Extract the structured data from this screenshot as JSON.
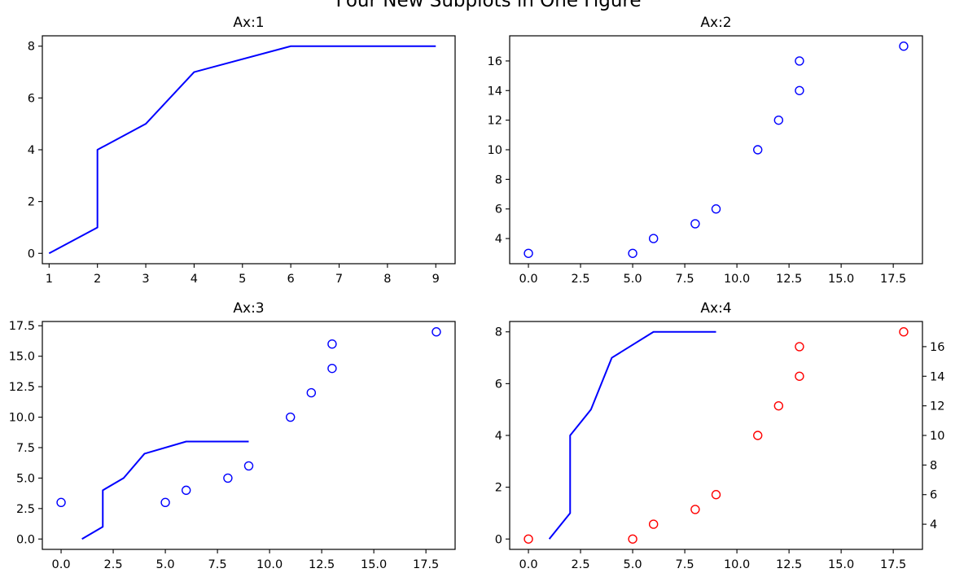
{
  "figure": {
    "suptitle": "Four New Subplots in One Figure"
  },
  "colors": {
    "line": "#0000ff",
    "marker_blue": "#0000ff",
    "marker_red": "#ff0000"
  },
  "chart_data": [
    {
      "type": "line",
      "title": "Ax:1",
      "x": [
        1,
        2,
        2,
        3,
        4,
        6,
        9
      ],
      "y": [
        0,
        1,
        4,
        5,
        7,
        8,
        8
      ],
      "xlim": [
        0.86,
        9.4
      ],
      "ylim": [
        -0.4,
        8.4
      ],
      "xticks": [
        1,
        2,
        3,
        4,
        5,
        6,
        7,
        8,
        9
      ],
      "xtick_labels": [
        "1",
        "2",
        "3",
        "4",
        "5",
        "6",
        "7",
        "8",
        "9"
      ],
      "yticks": [
        0,
        2,
        4,
        6,
        8
      ],
      "ytick_labels": [
        "0",
        "2",
        "4",
        "6",
        "8"
      ],
      "grid": false
    },
    {
      "type": "scatter",
      "title": "Ax:2",
      "x": [
        0,
        5,
        6,
        8,
        9,
        11,
        12,
        13,
        13,
        18
      ],
      "y": [
        3,
        3,
        4,
        5,
        6,
        10,
        12,
        14,
        16,
        17
      ],
      "marker": "open-circle",
      "xlim": [
        -0.9,
        18.9
      ],
      "ylim": [
        2.3,
        17.7
      ],
      "xticks": [
        0,
        2.5,
        5,
        7.5,
        10,
        12.5,
        15,
        17.5
      ],
      "xtick_labels": [
        "0.0",
        "2.5",
        "5.0",
        "7.5",
        "10.0",
        "12.5",
        "15.0",
        "17.5"
      ],
      "yticks": [
        4,
        6,
        8,
        10,
        12,
        14,
        16
      ],
      "ytick_labels": [
        "4",
        "6",
        "8",
        "10",
        "12",
        "14",
        "16"
      ],
      "grid": false
    },
    {
      "type": "line+scatter",
      "title": "Ax:3",
      "series": [
        {
          "kind": "line",
          "x": [
            1,
            2,
            2,
            3,
            4,
            6,
            9
          ],
          "y": [
            0,
            1,
            4,
            5,
            7,
            8,
            8
          ]
        },
        {
          "kind": "scatter",
          "marker": "open-circle",
          "x": [
            0,
            5,
            6,
            8,
            9,
            11,
            12,
            13,
            13,
            18
          ],
          "y": [
            3,
            3,
            4,
            5,
            6,
            10,
            12,
            14,
            16,
            17
          ]
        }
      ],
      "xlim": [
        -0.9,
        18.9
      ],
      "ylim": [
        -0.85,
        17.85
      ],
      "xticks": [
        0,
        2.5,
        5,
        7.5,
        10,
        12.5,
        15,
        17.5
      ],
      "xtick_labels": [
        "0.0",
        "2.5",
        "5.0",
        "7.5",
        "10.0",
        "12.5",
        "15.0",
        "17.5"
      ],
      "yticks": [
        0,
        2.5,
        5,
        7.5,
        10,
        12.5,
        15,
        17.5
      ],
      "ytick_labels": [
        "0.0",
        "2.5",
        "5.0",
        "7.5",
        "10.0",
        "12.5",
        "15.0",
        "17.5"
      ],
      "grid": false
    },
    {
      "type": "line+scatter (twin y-axes)",
      "title": "Ax:4",
      "series": [
        {
          "kind": "line",
          "axis": "left",
          "x": [
            1,
            2,
            2,
            3,
            4,
            6,
            9
          ],
          "y": [
            0,
            1,
            4,
            5,
            7,
            8,
            8
          ]
        },
        {
          "kind": "scatter",
          "axis": "right",
          "marker": "open-circle-red",
          "x": [
            0,
            5,
            6,
            8,
            9,
            11,
            12,
            13,
            13,
            18
          ],
          "y": [
            3,
            3,
            4,
            5,
            6,
            10,
            12,
            14,
            16,
            17
          ]
        }
      ],
      "xlim": [
        -0.9,
        18.9
      ],
      "ylim_left": [
        -0.4,
        8.4
      ],
      "ylim_right": [
        2.3,
        17.7
      ],
      "xticks": [
        0,
        2.5,
        5,
        7.5,
        10,
        12.5,
        15,
        17.5
      ],
      "xtick_labels": [
        "0.0",
        "2.5",
        "5.0",
        "7.5",
        "10.0",
        "12.5",
        "15.0",
        "17.5"
      ],
      "yticks_left": [
        0,
        2,
        4,
        6,
        8
      ],
      "ytick_labels_left": [
        "0",
        "2",
        "4",
        "6",
        "8"
      ],
      "yticks_right": [
        4,
        6,
        8,
        10,
        12,
        14,
        16
      ],
      "ytick_labels_right": [
        "4",
        "6",
        "8",
        "10",
        "12",
        "14",
        "16"
      ],
      "grid": false
    }
  ]
}
